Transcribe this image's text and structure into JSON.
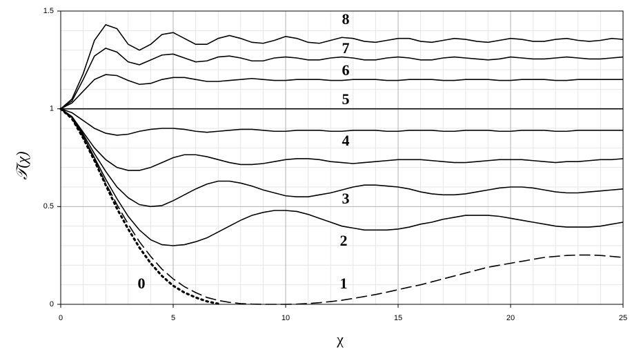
{
  "chart_data": {
    "type": "line",
    "x_label": "χ",
    "y_label": "𝒯(χ)",
    "x": [
      0,
      0.5,
      1,
      1.5,
      2,
      2.5,
      3,
      3.5,
      4,
      4.5,
      5,
      5.5,
      6,
      6.5,
      7,
      7.5,
      8,
      8.5,
      9,
      9.5,
      10,
      10.5,
      11,
      11.5,
      12,
      12.5,
      13,
      13.5,
      14,
      14.5,
      15,
      15.5,
      16,
      16.5,
      17,
      17.5,
      18,
      18.5,
      19,
      19.5,
      20,
      20.5,
      21,
      21.5,
      22,
      22.5,
      23,
      23.5,
      24,
      24.5,
      25
    ],
    "xlim": [
      0,
      25
    ],
    "ylim": [
      0,
      1.5
    ],
    "xticks": [
      0,
      5,
      10,
      15,
      20,
      25
    ],
    "yticks": [
      0,
      0.5,
      1,
      1.5
    ],
    "minor_xticks": [
      1,
      2,
      3,
      4,
      6,
      7,
      8,
      9,
      11,
      12,
      13,
      14,
      16,
      17,
      18,
      19,
      21,
      22,
      23,
      24
    ],
    "minor_yticks": [
      0.1,
      0.2,
      0.3,
      0.4,
      0.6,
      0.7,
      0.8,
      0.9,
      1.1,
      1.2,
      1.3,
      1.4
    ],
    "grid": true,
    "series": [
      {
        "color": "#000000",
        "dash": "solid",
        "values": [
          1,
          1.05,
          1.18,
          1.35,
          1.43,
          1.41,
          1.33,
          1.3,
          1.33,
          1.38,
          1.39,
          1.36,
          1.33,
          1.33,
          1.36,
          1.375,
          1.36,
          1.34,
          1.335,
          1.35,
          1.37,
          1.36,
          1.34,
          1.335,
          1.35,
          1.365,
          1.36,
          1.345,
          1.34,
          1.35,
          1.36,
          1.36,
          1.345,
          1.34,
          1.35,
          1.36,
          1.355,
          1.345,
          1.34,
          1.35,
          1.36,
          1.355,
          1.345,
          1.345,
          1.355,
          1.36,
          1.35,
          1.345,
          1.35,
          1.36,
          1.355
        ]
      },
      {
        "color": "#000000",
        "dash": "solid",
        "values": [
          1,
          1.04,
          1.15,
          1.27,
          1.31,
          1.29,
          1.24,
          1.225,
          1.25,
          1.275,
          1.28,
          1.26,
          1.24,
          1.245,
          1.265,
          1.27,
          1.26,
          1.245,
          1.245,
          1.26,
          1.265,
          1.26,
          1.25,
          1.25,
          1.26,
          1.265,
          1.26,
          1.25,
          1.25,
          1.26,
          1.265,
          1.26,
          1.25,
          1.25,
          1.26,
          1.265,
          1.26,
          1.255,
          1.25,
          1.255,
          1.265,
          1.26,
          1.255,
          1.255,
          1.26,
          1.265,
          1.26,
          1.255,
          1.255,
          1.26,
          1.265
        ]
      },
      {
        "color": "#000000",
        "dash": "solid",
        "values": [
          1,
          1.03,
          1.09,
          1.15,
          1.175,
          1.17,
          1.145,
          1.125,
          1.13,
          1.15,
          1.16,
          1.16,
          1.15,
          1.14,
          1.14,
          1.145,
          1.15,
          1.155,
          1.15,
          1.145,
          1.145,
          1.15,
          1.15,
          1.15,
          1.145,
          1.145,
          1.15,
          1.15,
          1.15,
          1.145,
          1.145,
          1.15,
          1.15,
          1.15,
          1.145,
          1.145,
          1.15,
          1.15,
          1.15,
          1.145,
          1.145,
          1.15,
          1.15,
          1.15,
          1.145,
          1.145,
          1.15,
          1.15,
          1.15,
          1.15,
          1.15
        ]
      },
      {
        "color": "#000000",
        "dash": "solid",
        "values": [
          1,
          1,
          1,
          1,
          1,
          1,
          1,
          1,
          1,
          1,
          1,
          1,
          1,
          1,
          1,
          1,
          1,
          1,
          1,
          1,
          1,
          1,
          1,
          1,
          1,
          1,
          1,
          1,
          1,
          1,
          1,
          1,
          1,
          1,
          1,
          1,
          1,
          1,
          1,
          1,
          1,
          1,
          1,
          1,
          1,
          1,
          1,
          1,
          1,
          1,
          1
        ]
      },
      {
        "color": "#000000",
        "dash": "solid",
        "values": [
          1,
          0.98,
          0.94,
          0.9,
          0.875,
          0.865,
          0.87,
          0.885,
          0.895,
          0.9,
          0.9,
          0.895,
          0.885,
          0.88,
          0.885,
          0.89,
          0.895,
          0.895,
          0.89,
          0.885,
          0.885,
          0.89,
          0.89,
          0.89,
          0.885,
          0.885,
          0.89,
          0.89,
          0.89,
          0.885,
          0.885,
          0.89,
          0.89,
          0.89,
          0.885,
          0.885,
          0.89,
          0.89,
          0.89,
          0.885,
          0.885,
          0.89,
          0.89,
          0.89,
          0.885,
          0.885,
          0.89,
          0.89,
          0.89,
          0.89,
          0.89
        ]
      },
      {
        "color": "#000000",
        "dash": "solid",
        "values": [
          1,
          0.96,
          0.88,
          0.8,
          0.74,
          0.7,
          0.685,
          0.685,
          0.7,
          0.725,
          0.75,
          0.765,
          0.765,
          0.755,
          0.74,
          0.725,
          0.715,
          0.715,
          0.72,
          0.73,
          0.74,
          0.745,
          0.745,
          0.74,
          0.73,
          0.725,
          0.72,
          0.725,
          0.73,
          0.735,
          0.74,
          0.74,
          0.74,
          0.735,
          0.73,
          0.725,
          0.725,
          0.73,
          0.735,
          0.74,
          0.74,
          0.74,
          0.735,
          0.73,
          0.725,
          0.73,
          0.73,
          0.735,
          0.74,
          0.74,
          0.745
        ]
      },
      {
        "color": "#000000",
        "dash": "solid",
        "values": [
          1,
          0.96,
          0.87,
          0.77,
          0.68,
          0.6,
          0.545,
          0.51,
          0.5,
          0.505,
          0.53,
          0.56,
          0.59,
          0.615,
          0.63,
          0.63,
          0.62,
          0.605,
          0.585,
          0.57,
          0.555,
          0.55,
          0.55,
          0.56,
          0.57,
          0.585,
          0.6,
          0.61,
          0.61,
          0.605,
          0.6,
          0.59,
          0.575,
          0.565,
          0.56,
          0.56,
          0.565,
          0.575,
          0.585,
          0.595,
          0.6,
          0.6,
          0.595,
          0.585,
          0.575,
          0.57,
          0.57,
          0.575,
          0.58,
          0.585,
          0.59
        ]
      },
      {
        "color": "#000000",
        "dash": "solid",
        "values": [
          1,
          0.955,
          0.86,
          0.75,
          0.64,
          0.54,
          0.45,
          0.38,
          0.33,
          0.305,
          0.3,
          0.305,
          0.32,
          0.34,
          0.37,
          0.4,
          0.43,
          0.455,
          0.47,
          0.48,
          0.48,
          0.475,
          0.46,
          0.44,
          0.42,
          0.4,
          0.39,
          0.38,
          0.38,
          0.38,
          0.385,
          0.395,
          0.41,
          0.42,
          0.435,
          0.445,
          0.455,
          0.455,
          0.455,
          0.45,
          0.44,
          0.43,
          0.42,
          0.41,
          0.4,
          0.395,
          0.395,
          0.395,
          0.4,
          0.41,
          0.42
        ]
      },
      {
        "color": "#000000",
        "dash": "dashed",
        "values": [
          1,
          0.95,
          0.855,
          0.74,
          0.62,
          0.51,
          0.41,
          0.32,
          0.245,
          0.18,
          0.13,
          0.09,
          0.06,
          0.035,
          0.02,
          0.01,
          0.004,
          0.001,
          0,
          0,
          0,
          0.001,
          0.004,
          0.008,
          0.014,
          0.021,
          0.03,
          0.04,
          0.05,
          0.062,
          0.075,
          0.088,
          0.1,
          0.115,
          0.13,
          0.145,
          0.16,
          0.175,
          0.19,
          0.2,
          0.21,
          0.22,
          0.23,
          0.24,
          0.245,
          0.25,
          0.252,
          0.252,
          0.25,
          0.245,
          0.24
        ]
      },
      {
        "color": "#000000",
        "dash": "dotted",
        "values": [
          1,
          0.95,
          0.85,
          0.735,
          0.61,
          0.49,
          0.385,
          0.29,
          0.21,
          0.145,
          0.095,
          0.06,
          0.035,
          0.015,
          0.003,
          null,
          null,
          null,
          null,
          null,
          null,
          null,
          null,
          null,
          null,
          null,
          null,
          null,
          null,
          null,
          null,
          null,
          null,
          null,
          null,
          null,
          null,
          null,
          null,
          null,
          null,
          null,
          null,
          null,
          null,
          null,
          null,
          null,
          null,
          null,
          null
        ]
      }
    ],
    "annotations": [
      "8",
      "7",
      "6",
      "5",
      "4",
      "3",
      "2",
      "1",
      "0"
    ]
  }
}
